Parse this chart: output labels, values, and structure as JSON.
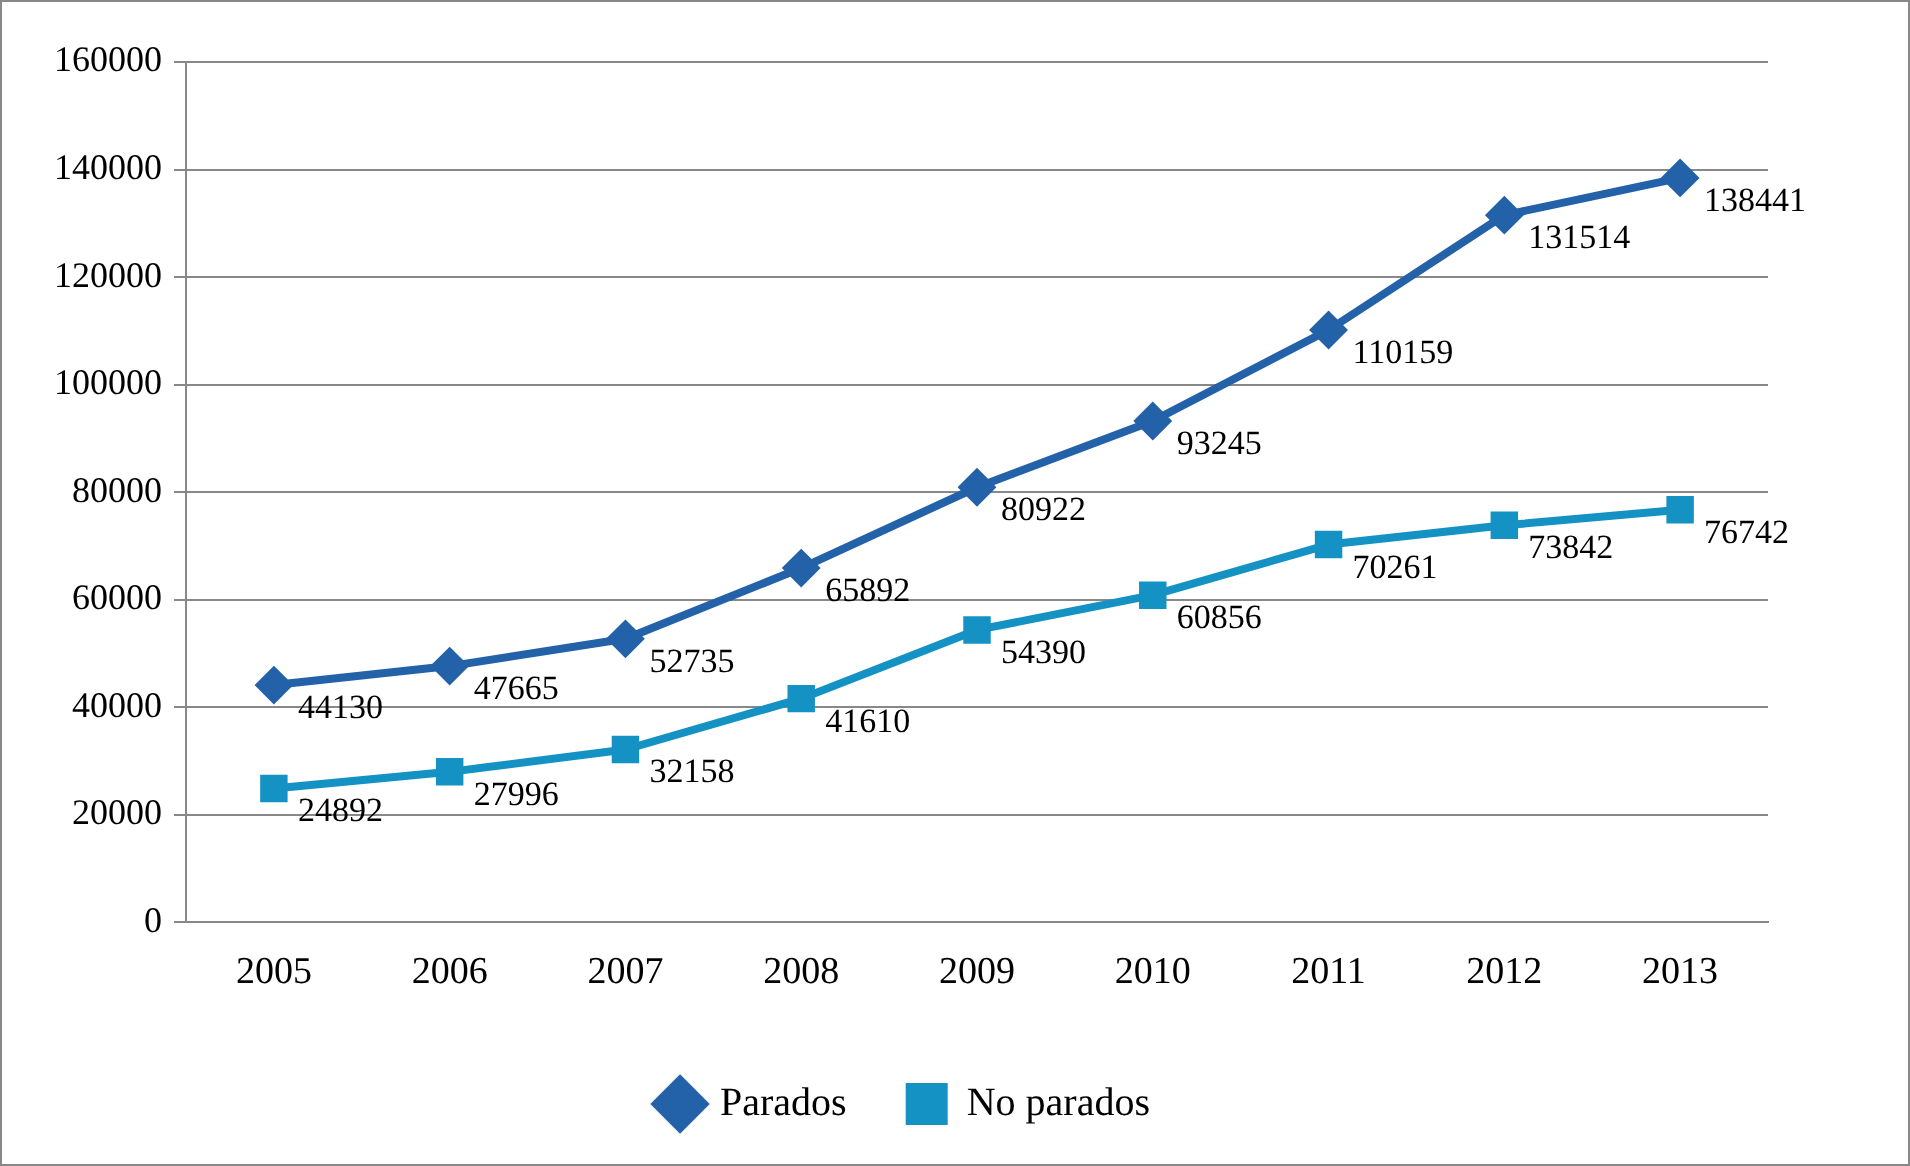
{
  "chart_data": {
    "type": "line",
    "categories": [
      "2005",
      "2006",
      "2007",
      "2008",
      "2009",
      "2010",
      "2011",
      "2012",
      "2013"
    ],
    "series": [
      {
        "name": "Parados",
        "color": "#2361a8",
        "marker": "diamond",
        "values": [
          44130,
          47665,
          52735,
          65892,
          80922,
          93245,
          110159,
          131514,
          138441
        ]
      },
      {
        "name": "No parados",
        "color": "#1592c4",
        "marker": "square",
        "values": [
          24892,
          27996,
          32158,
          41610,
          54390,
          60856,
          70261,
          73842,
          76742
        ]
      }
    ],
    "ylim": [
      0,
      160000
    ],
    "yticks": [
      0,
      20000,
      40000,
      60000,
      80000,
      100000,
      120000,
      140000,
      160000
    ],
    "grid": "y",
    "legend": "bottom",
    "data_labels": true,
    "line_style": "solid"
  }
}
